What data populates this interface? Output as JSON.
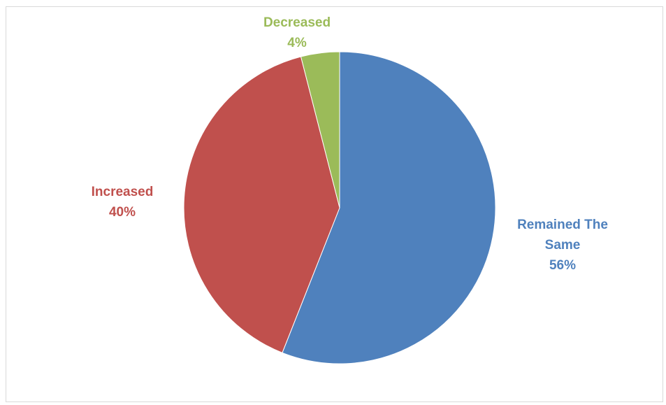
{
  "chart_data": {
    "type": "pie",
    "title": "",
    "legend": "none",
    "slices": [
      {
        "label": "Remained The Same",
        "label_lines": [
          "Remained The",
          "Same"
        ],
        "percent_text": "56%",
        "value": 56,
        "color": "#4f81bd"
      },
      {
        "label": "Increased",
        "label_lines": [
          "Increased"
        ],
        "percent_text": "40%",
        "value": 40,
        "color": "#c0504d"
      },
      {
        "label": "Decreased",
        "label_lines": [
          "Decreased"
        ],
        "percent_text": "4%",
        "value": 4,
        "color": "#9bbb59"
      }
    ]
  }
}
